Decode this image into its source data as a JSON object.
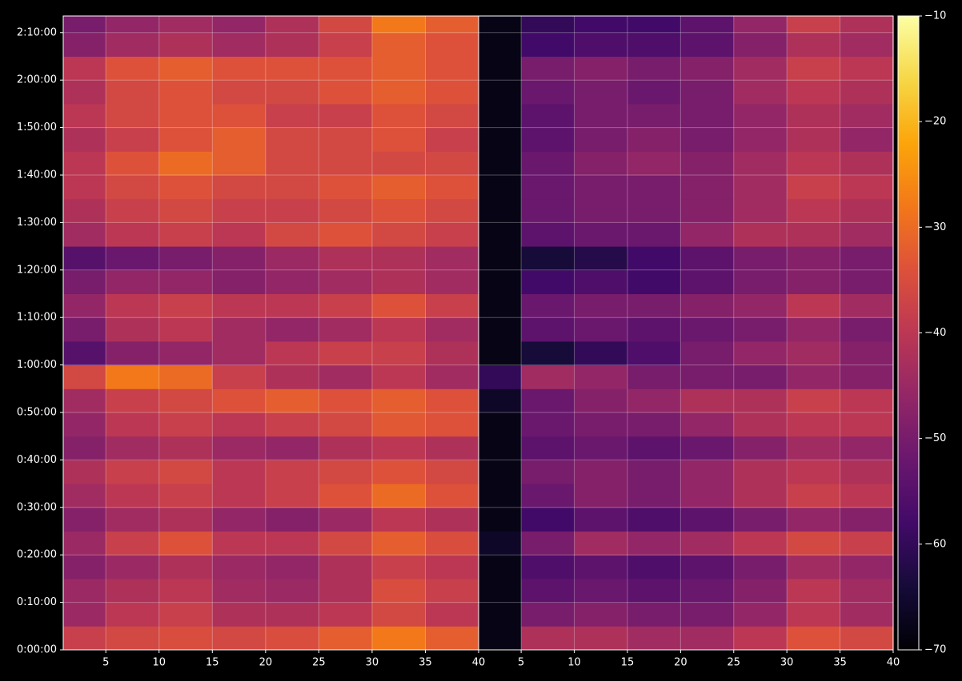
{
  "chart_data": [
    {
      "type": "heatmap",
      "colormap": "inferno",
      "grid": true,
      "xlim": [
        1,
        40
      ],
      "ylim": [
        0,
        8010
      ],
      "xticks": [
        5,
        10,
        15,
        20,
        25,
        30,
        35,
        40
      ],
      "yticks": [
        {
          "value": 0,
          "label": "0:00:00"
        },
        {
          "value": 600,
          "label": "0:10:00"
        },
        {
          "value": 1200,
          "label": "0:20:00"
        },
        {
          "value": 1800,
          "label": "0:30:00"
        },
        {
          "value": 2400,
          "label": "0:40:00"
        },
        {
          "value": 3000,
          "label": "0:50:00"
        },
        {
          "value": 3600,
          "label": "1:00:00"
        },
        {
          "value": 4200,
          "label": "1:10:00"
        },
        {
          "value": 4800,
          "label": "1:20:00"
        },
        {
          "value": 5400,
          "label": "1:30:00"
        },
        {
          "value": 6000,
          "label": "1:40:00"
        },
        {
          "value": 6600,
          "label": "1:50:00"
        },
        {
          "value": 7200,
          "label": "2:00:00"
        },
        {
          "value": 7800,
          "label": "2:10:00"
        }
      ],
      "x_bins": [
        1,
        5,
        10,
        15,
        20,
        25,
        30,
        35,
        40
      ],
      "y_bins": [
        0,
        300,
        600,
        900,
        1200,
        1500,
        1800,
        2100,
        2400,
        2700,
        3000,
        3300,
        3600,
        3900,
        4200,
        4500,
        4800,
        5100,
        5400,
        5700,
        6000,
        6300,
        6600,
        6900,
        7200,
        7500,
        7800,
        8100
      ],
      "values": [
        [
          -38,
          -36,
          -35,
          -36,
          -35,
          -32,
          -28,
          -32
        ],
        [
          -45,
          -40,
          -38,
          -42,
          -42,
          -40,
          -36,
          -40
        ],
        [
          -45,
          -42,
          -40,
          -44,
          -45,
          -42,
          -35,
          -38
        ],
        [
          -48,
          -45,
          -42,
          -45,
          -46,
          -42,
          -38,
          -40
        ],
        [
          -45,
          -38,
          -34,
          -40,
          -40,
          -36,
          -32,
          -35
        ],
        [
          -48,
          -44,
          -42,
          -46,
          -48,
          -45,
          -40,
          -42
        ],
        [
          -44,
          -40,
          -38,
          -40,
          -38,
          -34,
          -30,
          -34
        ],
        [
          -42,
          -38,
          -36,
          -40,
          -38,
          -36,
          -34,
          -36
        ],
        [
          -48,
          -44,
          -42,
          -45,
          -46,
          -42,
          -40,
          -42
        ],
        [
          -46,
          -40,
          -38,
          -40,
          -38,
          -36,
          -33,
          -34
        ],
        [
          -44,
          -38,
          -36,
          -34,
          -32,
          -34,
          -32,
          -34
        ],
        [
          -36,
          -28,
          -30,
          -38,
          -42,
          -44,
          -40,
          -44
        ],
        [
          -55,
          -48,
          -46,
          -44,
          -40,
          -38,
          -38,
          -42
        ],
        [
          -50,
          -42,
          -40,
          -44,
          -46,
          -44,
          -40,
          -44
        ],
        [
          -46,
          -40,
          -38,
          -40,
          -40,
          -38,
          -34,
          -38
        ],
        [
          -50,
          -46,
          -46,
          -48,
          -46,
          -44,
          -42,
          -44
        ],
        [
          -55,
          -52,
          -50,
          -48,
          -45,
          -42,
          -42,
          -44
        ],
        [
          -44,
          -40,
          -38,
          -40,
          -36,
          -34,
          -36,
          -38
        ],
        [
          -42,
          -38,
          -36,
          -38,
          -38,
          -36,
          -34,
          -36
        ],
        [
          -40,
          -36,
          -34,
          -36,
          -36,
          -34,
          -32,
          -34
        ],
        [
          -40,
          -34,
          -30,
          -32,
          -36,
          -36,
          -36,
          -36
        ],
        [
          -42,
          -38,
          -34,
          -32,
          -36,
          -36,
          -34,
          -38
        ],
        [
          -40,
          -36,
          -34,
          -34,
          -38,
          -38,
          -34,
          -36
        ],
        [
          -42,
          -36,
          -34,
          -36,
          -36,
          -34,
          -32,
          -34
        ],
        [
          -40,
          -34,
          -32,
          -34,
          -34,
          -34,
          -32,
          -34
        ],
        [
          -48,
          -44,
          -42,
          -44,
          -42,
          -38,
          -32,
          -34
        ],
        [
          -50,
          -46,
          -44,
          -46,
          -42,
          -36,
          -28,
          -32
        ]
      ]
    },
    {
      "type": "heatmap",
      "colormap": "inferno",
      "grid": true,
      "xlim": [
        1,
        40
      ],
      "ylim": [
        0,
        8010
      ],
      "xticks": [
        5,
        10,
        15,
        20,
        25,
        30,
        35,
        40
      ],
      "x_bins": [
        1,
        5,
        10,
        15,
        20,
        25,
        30,
        35,
        40
      ],
      "y_bins": [
        0,
        300,
        600,
        900,
        1200,
        1500,
        1800,
        2100,
        2400,
        2700,
        3000,
        3300,
        3600,
        3900,
        4200,
        4500,
        4800,
        5100,
        5400,
        5700,
        6000,
        6300,
        6600,
        6900,
        7200,
        7500,
        7800,
        8100
      ],
      "values": [
        [
          -68,
          -42,
          -42,
          -44,
          -44,
          -40,
          -34,
          -36
        ],
        [
          -68,
          -50,
          -48,
          -50,
          -50,
          -46,
          -40,
          -44
        ],
        [
          -68,
          -54,
          -52,
          -54,
          -52,
          -48,
          -40,
          -44
        ],
        [
          -68,
          -56,
          -54,
          -56,
          -54,
          -50,
          -44,
          -46
        ],
        [
          -66,
          -50,
          -44,
          -46,
          -44,
          -40,
          -36,
          -38
        ],
        [
          -68,
          -58,
          -54,
          -56,
          -54,
          -50,
          -46,
          -48
        ],
        [
          -68,
          -52,
          -48,
          -50,
          -46,
          -42,
          -38,
          -40
        ],
        [
          -68,
          -50,
          -48,
          -50,
          -46,
          -42,
          -40,
          -42
        ],
        [
          -68,
          -54,
          -52,
          -54,
          -52,
          -48,
          -44,
          -46
        ],
        [
          -68,
          -52,
          -50,
          -50,
          -46,
          -42,
          -40,
          -40
        ],
        [
          -66,
          -52,
          -48,
          -46,
          -42,
          -42,
          -38,
          -40
        ],
        [
          -60,
          -44,
          -46,
          -50,
          -50,
          -50,
          -46,
          -48
        ],
        [
          -68,
          -64,
          -60,
          -56,
          -50,
          -46,
          -44,
          -48
        ],
        [
          -68,
          -54,
          -52,
          -54,
          -52,
          -50,
          -46,
          -50
        ],
        [
          -68,
          -52,
          -50,
          -50,
          -48,
          -46,
          -40,
          -44
        ],
        [
          -68,
          -58,
          -56,
          -58,
          -54,
          -50,
          -48,
          -50
        ],
        [
          -68,
          -64,
          -62,
          -58,
          -54,
          -50,
          -48,
          -50
        ],
        [
          -68,
          -54,
          -52,
          -52,
          -46,
          -42,
          -42,
          -44
        ],
        [
          -68,
          -52,
          -50,
          -50,
          -48,
          -44,
          -40,
          -42
        ],
        [
          -68,
          -52,
          -50,
          -50,
          -48,
          -44,
          -38,
          -40
        ],
        [
          -68,
          -52,
          -48,
          -46,
          -48,
          -44,
          -40,
          -42
        ],
        [
          -68,
          -54,
          -50,
          -48,
          -50,
          -46,
          -42,
          -46
        ],
        [
          -68,
          -54,
          -50,
          -50,
          -50,
          -46,
          -42,
          -44
        ],
        [
          -68,
          -52,
          -50,
          -52,
          -50,
          -44,
          -40,
          -42
        ],
        [
          -68,
          -50,
          -48,
          -50,
          -48,
          -44,
          -38,
          -40
        ],
        [
          -68,
          -58,
          -56,
          -56,
          -54,
          -48,
          -42,
          -44
        ],
        [
          -68,
          -60,
          -58,
          -58,
          -54,
          -46,
          -38,
          -42
        ]
      ]
    }
  ],
  "colorbar": {
    "colormap": "inferno",
    "lim": [
      -70,
      -10
    ],
    "ticks": [
      {
        "value": -70,
        "label": "−70"
      },
      {
        "value": -60,
        "label": "−60"
      },
      {
        "value": -50,
        "label": "−50"
      },
      {
        "value": -40,
        "label": "−40"
      },
      {
        "value": -30,
        "label": "−30"
      },
      {
        "value": -20,
        "label": "−20"
      },
      {
        "value": -10,
        "label": "−10"
      }
    ]
  }
}
